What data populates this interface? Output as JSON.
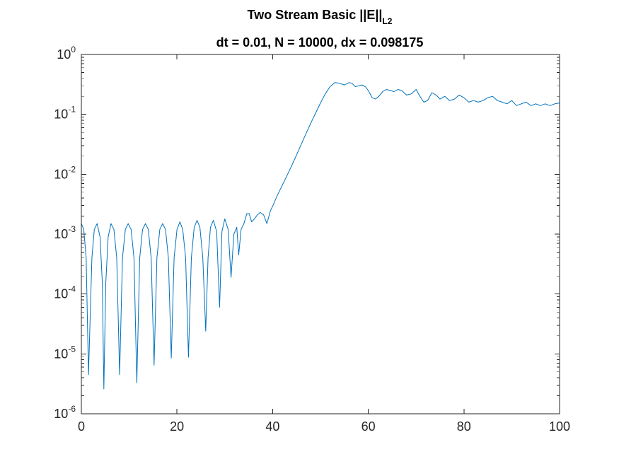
{
  "chart_data": {
    "type": "line",
    "title": {
      "line1_prefix": "Two Stream Basic ||E||",
      "line1_subscript": "L2",
      "line2": "dt = 0.01, N = 10000, dx = 0.098175"
    },
    "xlabel": "",
    "ylabel": "",
    "xlim": [
      0,
      100
    ],
    "ylim": [
      1e-06,
      1
    ],
    "yscale": "log",
    "grid": false,
    "legend": "none",
    "line_color": "#0072BD",
    "x_ticks": [
      {
        "value": 0,
        "label": "0"
      },
      {
        "value": 20,
        "label": "20"
      },
      {
        "value": 40,
        "label": "40"
      },
      {
        "value": 60,
        "label": "60"
      },
      {
        "value": 80,
        "label": "80"
      },
      {
        "value": 100,
        "label": "100"
      }
    ],
    "y_ticks": [
      {
        "value": 1e-06,
        "base": "10",
        "exp": "-6"
      },
      {
        "value": 1e-05,
        "base": "10",
        "exp": "-5"
      },
      {
        "value": 0.0001,
        "base": "10",
        "exp": "-4"
      },
      {
        "value": 0.001,
        "base": "10",
        "exp": "-3"
      },
      {
        "value": 0.01,
        "base": "10",
        "exp": "-2"
      },
      {
        "value": 0.1,
        "base": "10",
        "exp": "-1"
      },
      {
        "value": 1,
        "base": "10",
        "exp": "0"
      }
    ],
    "series": [
      {
        "x": [
          0,
          0.5,
          1.0,
          1.5,
          2.2,
          2.7,
          3.3,
          3.9,
          4.4,
          4.7,
          5.1,
          5.6,
          6.2,
          6.8,
          7.4,
          8.0,
          8.6,
          9.2,
          9.8,
          10.4,
          11.0,
          11.6,
          12.2,
          12.8,
          13.4,
          14.0,
          14.6,
          15.2,
          15.8,
          16.4,
          17.0,
          17.6,
          18.2,
          18.8,
          19.4,
          20.0,
          20.6,
          21.2,
          21.8,
          22.4,
          23.0,
          23.6,
          24.2,
          24.8,
          25.4,
          26.0,
          26.5,
          27.0,
          27.6,
          28.3,
          28.9,
          29.4,
          30.0,
          30.7,
          31.3,
          31.9,
          32.5,
          32.9,
          33.4,
          34.0,
          34.6,
          35.1,
          35.6,
          36.2,
          36.8,
          37.4,
          38.1,
          38.8,
          39.5,
          40.3,
          41.0,
          42.0,
          43.0,
          44.0,
          45.0,
          46.0,
          47.0,
          48.0,
          49.0,
          50.0,
          51.0,
          52.0,
          53.0,
          54.0,
          55.0,
          56.0,
          56.6,
          57.3,
          58.0,
          58.7,
          59.4,
          60.0,
          60.8,
          61.5,
          62.2,
          63.0,
          63.8,
          64.6,
          65.4,
          66.2,
          67.0,
          68.0,
          69.0,
          70.0,
          70.8,
          71.6,
          72.4,
          73.3,
          74.2,
          75.0,
          76.0,
          77.0,
          78.0,
          79.0,
          80.0,
          81.0,
          82.0,
          83.0,
          84.0,
          85.0,
          86.0,
          87.0,
          88.0,
          89.0,
          90.0,
          91.0,
          92.0,
          93.0,
          94.0,
          95.0,
          96.0,
          97.0,
          98.0,
          99.0,
          100.0
        ],
        "y": [
          0.0015,
          0.0012,
          0.0004,
          4.5e-06,
          0.0004,
          0.0012,
          0.0015,
          0.0009,
          0.00015,
          2.6e-06,
          0.00015,
          0.0009,
          0.0015,
          0.0012,
          0.0004,
          4.5e-06,
          0.0004,
          0.0012,
          0.0015,
          0.0012,
          0.0004,
          3.3e-06,
          0.0004,
          0.0012,
          0.0015,
          0.0012,
          0.0004,
          6.5e-06,
          0.0004,
          0.0012,
          0.0015,
          0.0012,
          0.0004,
          8.5e-06,
          0.0004,
          0.0012,
          0.0016,
          0.0012,
          0.0004,
          8.8e-06,
          0.0004,
          0.0013,
          0.0017,
          0.0013,
          0.0004,
          2.4e-05,
          0.0004,
          0.0013,
          0.0017,
          0.0011,
          6e-05,
          0.0011,
          0.0018,
          0.0012,
          0.00019,
          0.001,
          0.0013,
          0.00045,
          0.0012,
          0.0015,
          0.0022,
          0.0022,
          0.0016,
          0.0018,
          0.0021,
          0.0023,
          0.0021,
          0.0015,
          0.0024,
          0.0033,
          0.0045,
          0.0065,
          0.0095,
          0.014,
          0.021,
          0.032,
          0.048,
          0.072,
          0.105,
          0.155,
          0.22,
          0.29,
          0.34,
          0.33,
          0.31,
          0.34,
          0.33,
          0.29,
          0.3,
          0.31,
          0.29,
          0.25,
          0.19,
          0.18,
          0.2,
          0.24,
          0.26,
          0.25,
          0.24,
          0.26,
          0.25,
          0.21,
          0.22,
          0.26,
          0.2,
          0.16,
          0.17,
          0.23,
          0.21,
          0.18,
          0.2,
          0.17,
          0.18,
          0.21,
          0.19,
          0.16,
          0.17,
          0.16,
          0.17,
          0.19,
          0.2,
          0.17,
          0.16,
          0.15,
          0.17,
          0.14,
          0.15,
          0.16,
          0.14,
          0.15,
          0.14,
          0.15,
          0.14,
          0.15,
          0.155
        ]
      }
    ]
  }
}
